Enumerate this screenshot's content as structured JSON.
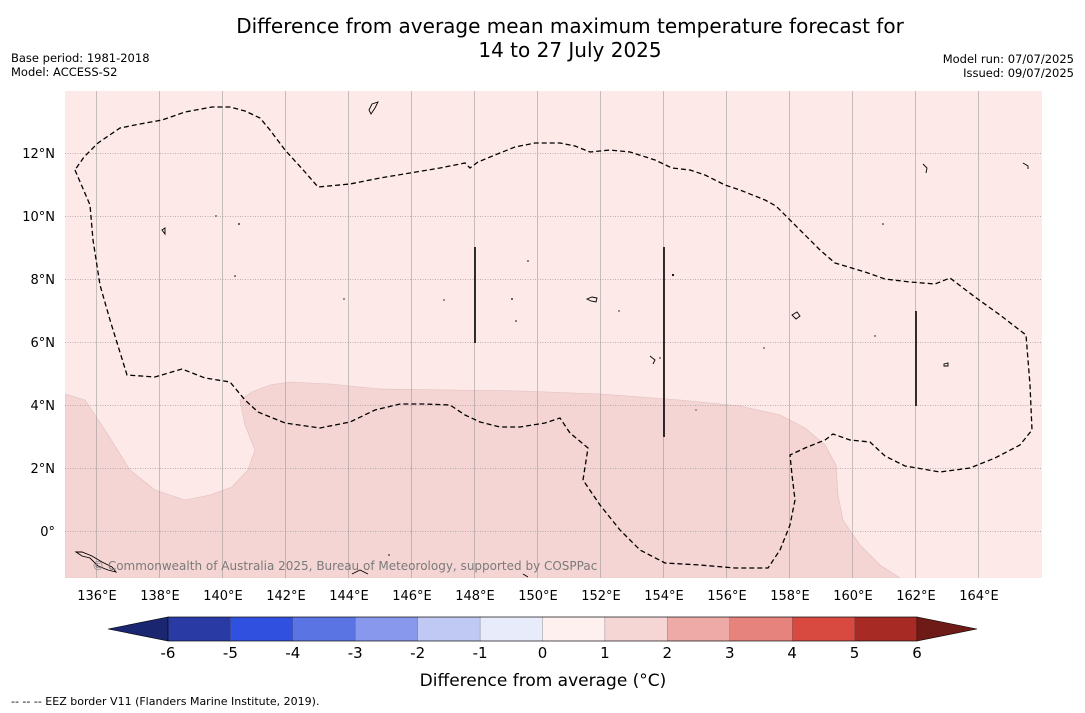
{
  "title_line1": "Difference from average mean maximum temperature forecast for",
  "title_line2": "14 to 27 July 2025",
  "base_period": "Base period: 1981-2018",
  "model": "Model: ACCESS-S2",
  "model_run": "Model run: 07/07/2025",
  "issued": "Issued: 09/07/2025",
  "map": {
    "lon_labels": [
      "136°E",
      "138°E",
      "140°E",
      "142°E",
      "144°E",
      "146°E",
      "148°E",
      "150°E",
      "152°E",
      "154°E",
      "156°E",
      "158°E",
      "160°E",
      "162°E",
      "164°E"
    ],
    "lat_labels": [
      "12°N",
      "10°N",
      "8°N",
      "6°N",
      "4°N",
      "2°N",
      "0°"
    ],
    "lon_range": [
      134.9,
      166.0
    ],
    "lat_range": [
      -1.5,
      14.0
    ],
    "watermark": "© Commonwealth of Australia 2025, Bureau of Meteorology, supported by COSPPac",
    "categories": [
      {
        "range": "0 to 1",
        "color": "#fce9e8"
      },
      {
        "range": "1 to 2",
        "color": "#f5d5d4"
      }
    ]
  },
  "colorbar": {
    "label": "Difference from average (°C)",
    "ticks": [
      "-6",
      "-5",
      "-4",
      "-3",
      "-2",
      "-1",
      "0",
      "1",
      "2",
      "3",
      "4",
      "5",
      "6"
    ],
    "colors": [
      "#2a3aa4",
      "#3050e0",
      "#5a74e4",
      "#8898ec",
      "#c0c8f4",
      "#e8ebfa",
      "#fdf0ef",
      "#f5d6d5",
      "#eeaaa6",
      "#e6837c",
      "#d84a3f",
      "#a82a24"
    ],
    "under_color": "#1a2670",
    "over_color": "#6e1a16"
  },
  "footnote": "--  --  -- EEZ border V11 (Flanders Marine Institute, 2019)."
}
